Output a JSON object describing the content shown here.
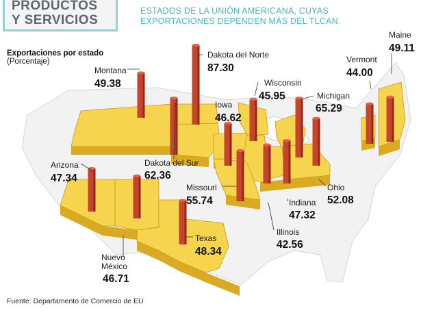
{
  "header": {
    "title": "PRODUCTOS\nY SERVICIOS",
    "subtitle": "ESTADOS DE LA UNIÓN AMERICANA, CUYAS\nEXPORTACIONES DEPENDEN MÁS DEL TLCAN."
  },
  "axis": {
    "title": "Exportaciones por estado",
    "unit": "(Porcentaje)"
  },
  "source": "Fuente: Departamento de Comercio de EU",
  "colors": {
    "map_fill": "#f6d44e",
    "map_side": "#d9aa22",
    "map_background": "#f3f3f3",
    "bar": "#c8442c",
    "accent": "#48b8c6"
  },
  "chart_data": {
    "type": "bar",
    "categories": [
      "Dakota del Norte",
      "Michigan",
      "Dakota del Sur",
      "Missouri",
      "Ohio",
      "Montana",
      "Maine",
      "Texas",
      "Arizona",
      "Indiana",
      "Nuevo México",
      "Iowa",
      "Wisconsin",
      "Vermont",
      "Illinois"
    ],
    "values": [
      87.3,
      65.29,
      62.36,
      55.74,
      52.08,
      49.38,
      49.11,
      48.34,
      47.34,
      47.32,
      46.71,
      46.62,
      45.95,
      44.0,
      42.56
    ],
    "labels": [
      {
        "name": "Montana",
        "value": "49.38"
      },
      {
        "name": "Dakota del Norte",
        "value": "87.30"
      },
      {
        "name": "Iowa",
        "value": "46.62"
      },
      {
        "name": "Wisconsin",
        "value": "45.95"
      },
      {
        "name": "Michigan",
        "value": "65.29"
      },
      {
        "name": "Vermont",
        "value": "44.00"
      },
      {
        "name": "Maine",
        "value": "49.11"
      },
      {
        "name": "Arizona",
        "value": "47.34"
      },
      {
        "name": "Dakota del Sur",
        "value": "62.36"
      },
      {
        "name": "Missouri",
        "value": "55.74"
      },
      {
        "name": "Ohio",
        "value": "52.08"
      },
      {
        "name": "Indiana",
        "value": "47.32"
      },
      {
        "name": "Illinois",
        "value": "42.56"
      },
      {
        "name": "Texas",
        "value": "48.34"
      },
      {
        "name": "Nuevo\nMéxico",
        "value": "46.71"
      }
    ]
  }
}
